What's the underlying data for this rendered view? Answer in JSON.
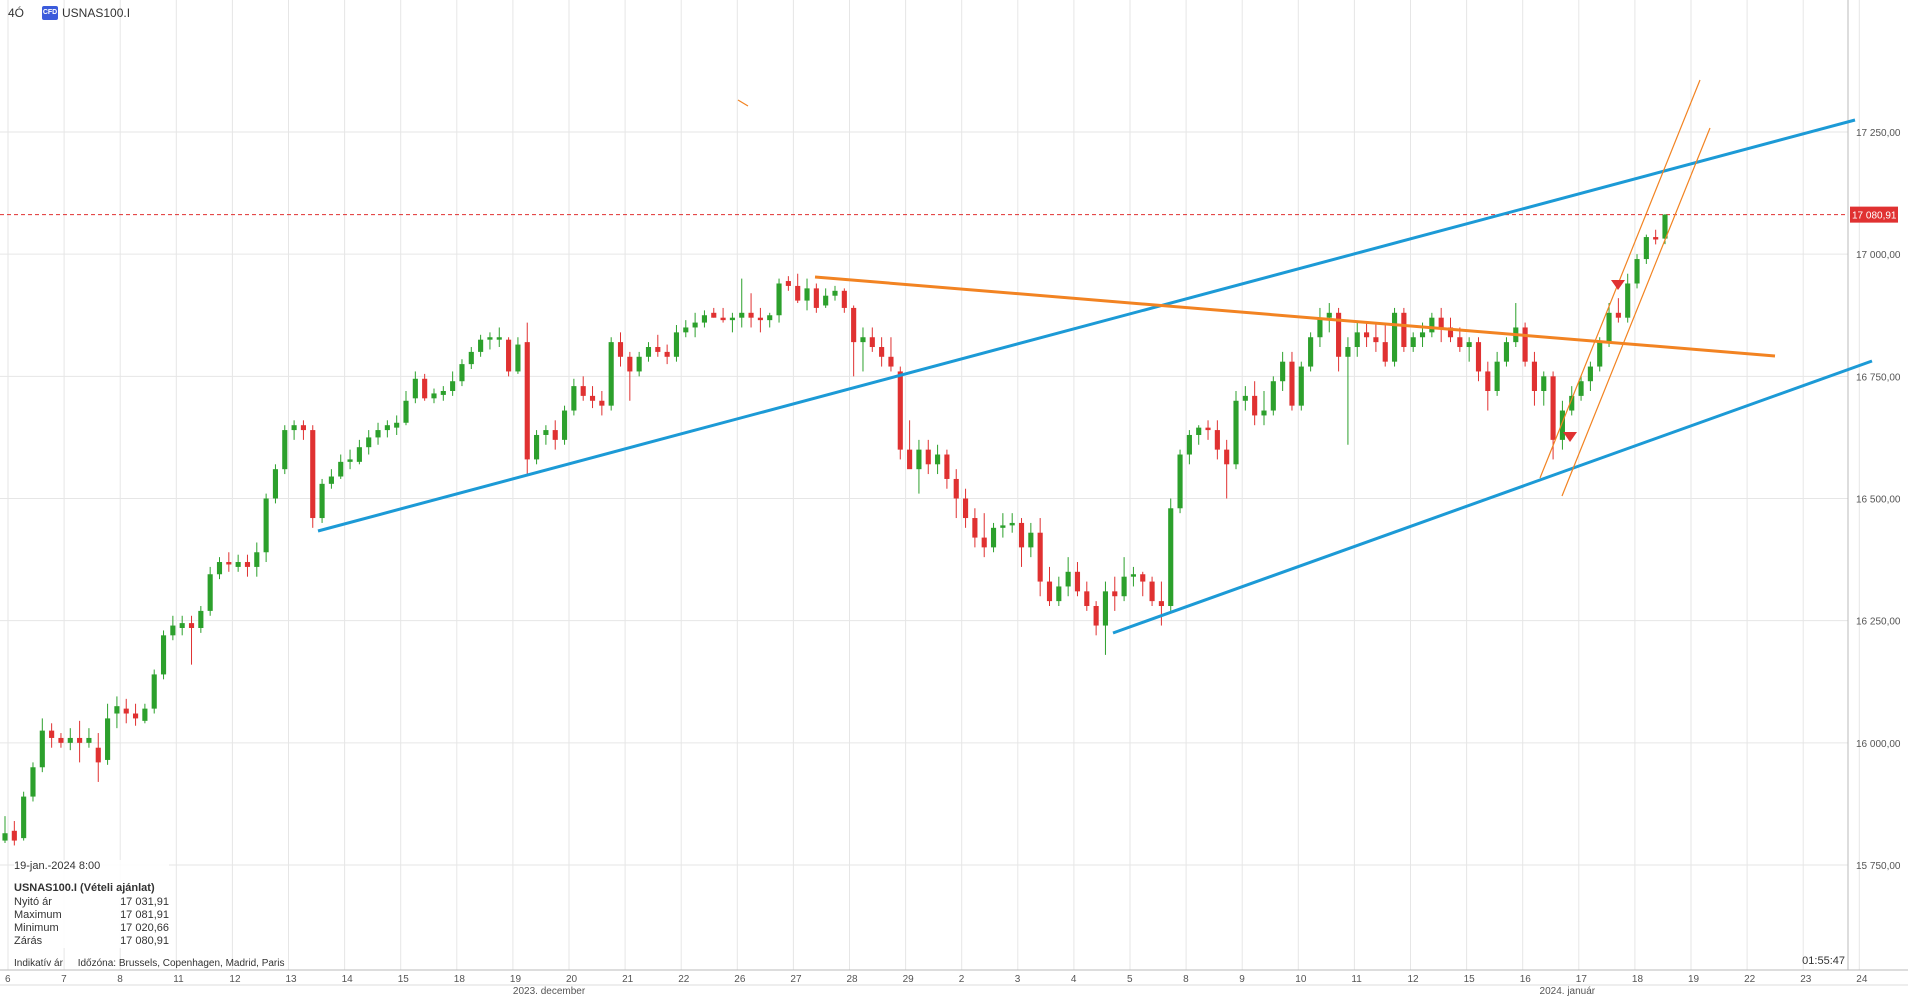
{
  "header": {
    "timeframe": "4Ó",
    "symbol": "USNAS100.I",
    "icon": "cfd-icon"
  },
  "colors": {
    "up": "#2ca02c",
    "down": "#e03131",
    "channel": "#1c9ad6",
    "trend": "#f28322",
    "price_line": "#e03131",
    "grid": "#e6e6e6"
  },
  "info": {
    "datetime": "19-jan.-2024 8:00",
    "title": "USNAS100.I (Vételi ajánlat)",
    "rows": [
      {
        "label": "Nyitó ár",
        "value": "17 031,91"
      },
      {
        "label": "Maximum",
        "value": "17 081,91"
      },
      {
        "label": "Minimum",
        "value": "17 020,66"
      },
      {
        "label": "Zárás",
        "value": "17 080,91"
      }
    ]
  },
  "footer": {
    "indicative": "Indikatív ár",
    "timezone": "Időzóna: Brussels, Copenhagen, Madrid, Paris",
    "clock": "01:55:47"
  },
  "chart_data": {
    "type": "candlestick",
    "y_ticks": [
      "17 250,00",
      "17 000,00",
      "16 750,00",
      "16 500,00",
      "16 250,00",
      "16 000,00",
      "15 750,00"
    ],
    "y_tick_values": [
      17250,
      17000,
      16750,
      16500,
      16250,
      16000,
      15750
    ],
    "ylim": [
      15500,
      17500
    ],
    "current_price": "17 080,91",
    "current_price_value": 17080.91,
    "x_days": [
      "6",
      "7",
      "8",
      "11",
      "12",
      "13",
      "14",
      "15",
      "18",
      "19",
      "20",
      "21",
      "22",
      "26",
      "27",
      "28",
      "29",
      "2",
      "3",
      "4",
      "5",
      "8",
      "9",
      "10",
      "11",
      "12",
      "15",
      "16",
      "17",
      "18",
      "19",
      "22",
      "23",
      "24"
    ],
    "month_labels": [
      {
        "label": "2023. december",
        "day_index": 9
      },
      {
        "label": "2024. január",
        "day_index": 27.3
      }
    ],
    "candles": [
      [
        15800,
        15850,
        15795,
        15815
      ],
      [
        15820,
        15840,
        15790,
        15800
      ],
      [
        15805,
        15900,
        15800,
        15890
      ],
      [
        15890,
        15960,
        15880,
        15950
      ],
      [
        15950,
        16050,
        15940,
        16025
      ],
      [
        16025,
        16040,
        15990,
        16010
      ],
      [
        16010,
        16020,
        15990,
        16000
      ],
      [
        16000,
        16030,
        15985,
        16010
      ],
      [
        16010,
        16045,
        15960,
        16000
      ],
      [
        16000,
        16030,
        15990,
        16010
      ],
      [
        15990,
        16020,
        15920,
        15960
      ],
      [
        15965,
        16080,
        15955,
        16050
      ],
      [
        16060,
        16095,
        16030,
        16075
      ],
      [
        16070,
        16090,
        16040,
        16060
      ],
      [
        16060,
        16080,
        16035,
        16050
      ],
      [
        16045,
        16080,
        16040,
        16070
      ],
      [
        16070,
        16150,
        16060,
        16140
      ],
      [
        16140,
        16230,
        16130,
        16220
      ],
      [
        16220,
        16260,
        16210,
        16240
      ],
      [
        16235,
        16260,
        16220,
        16245
      ],
      [
        16245,
        16260,
        16160,
        16235
      ],
      [
        16235,
        16280,
        16225,
        16270
      ],
      [
        16270,
        16360,
        16260,
        16345
      ],
      [
        16345,
        16380,
        16335,
        16370
      ],
      [
        16370,
        16390,
        16350,
        16365
      ],
      [
        16360,
        16385,
        16350,
        16370
      ],
      [
        16370,
        16385,
        16340,
        16360
      ],
      [
        16360,
        16410,
        16340,
        16390
      ],
      [
        16390,
        16510,
        16370,
        16500
      ],
      [
        16500,
        16570,
        16490,
        16560
      ],
      [
        16560,
        16650,
        16550,
        16640
      ],
      [
        16640,
        16660,
        16620,
        16650
      ],
      [
        16650,
        16660,
        16620,
        16640
      ],
      [
        16640,
        16650,
        16440,
        16460
      ],
      [
        16460,
        16540,
        16450,
        16530
      ],
      [
        16530,
        16560,
        16520,
        16545
      ],
      [
        16545,
        16590,
        16540,
        16575
      ],
      [
        16575,
        16600,
        16560,
        16580
      ],
      [
        16575,
        16620,
        16570,
        16605
      ],
      [
        16605,
        16640,
        16590,
        16625
      ],
      [
        16625,
        16655,
        16610,
        16640
      ],
      [
        16640,
        16660,
        16625,
        16650
      ],
      [
        16645,
        16670,
        16630,
        16655
      ],
      [
        16655,
        16720,
        16650,
        16700
      ],
      [
        16705,
        16760,
        16695,
        16745
      ],
      [
        16745,
        16755,
        16700,
        16705
      ],
      [
        16705,
        16725,
        16695,
        16715
      ],
      [
        16712,
        16730,
        16700,
        16720
      ],
      [
        16720,
        16760,
        16710,
        16740
      ],
      [
        16740,
        16785,
        16730,
        16775
      ],
      [
        16775,
        16810,
        16765,
        16800
      ],
      [
        16800,
        16835,
        16790,
        16825
      ],
      [
        16825,
        16840,
        16805,
        16830
      ],
      [
        16825,
        16850,
        16810,
        16830
      ],
      [
        16825,
        16830,
        16750,
        16760
      ],
      [
        16760,
        16830,
        16755,
        16815
      ],
      [
        16820,
        16860,
        16550,
        16580
      ],
      [
        16580,
        16640,
        16570,
        16630
      ],
      [
        16630,
        16650,
        16610,
        16640
      ],
      [
        16640,
        16660,
        16600,
        16620
      ],
      [
        16620,
        16690,
        16610,
        16680
      ],
      [
        16680,
        16745,
        16670,
        16730
      ],
      [
        16730,
        16750,
        16700,
        16710
      ],
      [
        16710,
        16730,
        16685,
        16700
      ],
      [
        16700,
        16720,
        16670,
        16690
      ],
      [
        16690,
        16830,
        16680,
        16820
      ],
      [
        16820,
        16840,
        16770,
        16790
      ],
      [
        16790,
        16800,
        16700,
        16760
      ],
      [
        16760,
        16800,
        16750,
        16790
      ],
      [
        16790,
        16820,
        16780,
        16810
      ],
      [
        16810,
        16835,
        16790,
        16800
      ],
      [
        16800,
        16815,
        16775,
        16790
      ],
      [
        16790,
        16855,
        16780,
        16840
      ],
      [
        16840,
        16865,
        16830,
        16850
      ],
      [
        16850,
        16880,
        16830,
        16860
      ],
      [
        16860,
        16885,
        16850,
        16875
      ],
      [
        16880,
        16890,
        16870,
        16870
      ],
      [
        16870,
        16890,
        16860,
        16865
      ],
      [
        16865,
        16880,
        16840,
        16870
      ],
      [
        16870,
        16950,
        16850,
        16880
      ],
      [
        16880,
        16920,
        16850,
        16870
      ],
      [
        16870,
        16890,
        16840,
        16865
      ],
      [
        16865,
        16880,
        16850,
        16875
      ],
      [
        16875,
        16950,
        16860,
        16940
      ],
      [
        16945,
        16955,
        16925,
        16935
      ],
      [
        16935,
        16960,
        16900,
        16905
      ],
      [
        16905,
        16950,
        16885,
        16930
      ],
      [
        16930,
        16940,
        16880,
        16890
      ],
      [
        16895,
        16930,
        16890,
        16915
      ],
      [
        16915,
        16935,
        16905,
        16925
      ],
      [
        16925,
        16930,
        16880,
        16890
      ],
      [
        16890,
        16895,
        16750,
        16820
      ],
      [
        16820,
        16850,
        16760,
        16830
      ],
      [
        16830,
        16850,
        16800,
        16810
      ],
      [
        16810,
        16830,
        16770,
        16790
      ],
      [
        16790,
        16830,
        16760,
        16770
      ],
      [
        16760,
        16770,
        16580,
        16600
      ],
      [
        16600,
        16660,
        16570,
        16560
      ],
      [
        16560,
        16620,
        16510,
        16600
      ],
      [
        16600,
        16620,
        16550,
        16570
      ],
      [
        16570,
        16610,
        16550,
        16590
      ],
      [
        16590,
        16600,
        16520,
        16540
      ],
      [
        16540,
        16560,
        16460,
        16500
      ],
      [
        16500,
        16520,
        16440,
        16460
      ],
      [
        16460,
        16480,
        16400,
        16420
      ],
      [
        16420,
        16470,
        16380,
        16400
      ],
      [
        16400,
        16450,
        16390,
        16440
      ],
      [
        16440,
        16470,
        16420,
        16445
      ],
      [
        16445,
        16470,
        16430,
        16450
      ],
      [
        16450,
        16460,
        16360,
        16400
      ],
      [
        16400,
        16450,
        16380,
        16430
      ],
      [
        16430,
        16460,
        16300,
        16330
      ],
      [
        16330,
        16360,
        16280,
        16290
      ],
      [
        16290,
        16340,
        16280,
        16320
      ],
      [
        16320,
        16380,
        16300,
        16350
      ],
      [
        16350,
        16370,
        16300,
        16310
      ],
      [
        16310,
        16330,
        16270,
        16280
      ],
      [
        16280,
        16290,
        16220,
        16240
      ],
      [
        16240,
        16330,
        16180,
        16310
      ],
      [
        16310,
        16340,
        16270,
        16300
      ],
      [
        16300,
        16380,
        16290,
        16340
      ],
      [
        16340,
        16360,
        16320,
        16345
      ],
      [
        16345,
        16350,
        16300,
        16330
      ],
      [
        16330,
        16340,
        16280,
        16290
      ],
      [
        16290,
        16330,
        16240,
        16280
      ],
      [
        16280,
        16500,
        16270,
        16480
      ],
      [
        16480,
        16600,
        16470,
        16590
      ],
      [
        16590,
        16640,
        16570,
        16630
      ],
      [
        16630,
        16650,
        16610,
        16645
      ],
      [
        16645,
        16660,
        16620,
        16640
      ],
      [
        16640,
        16660,
        16580,
        16600
      ],
      [
        16600,
        16620,
        16500,
        16570
      ],
      [
        16570,
        16720,
        16560,
        16700
      ],
      [
        16700,
        16730,
        16680,
        16710
      ],
      [
        16710,
        16740,
        16650,
        16670
      ],
      [
        16670,
        16720,
        16650,
        16680
      ],
      [
        16680,
        16750,
        16670,
        16740
      ],
      [
        16740,
        16800,
        16720,
        16780
      ],
      [
        16780,
        16800,
        16680,
        16690
      ],
      [
        16690,
        16780,
        16680,
        16770
      ],
      [
        16770,
        16840,
        16760,
        16830
      ],
      [
        16830,
        16890,
        16810,
        16870
      ],
      [
        16870,
        16900,
        16840,
        16880
      ],
      [
        16880,
        16890,
        16760,
        16790
      ],
      [
        16790,
        16830,
        16610,
        16810
      ],
      [
        16810,
        16860,
        16790,
        16840
      ],
      [
        16840,
        16860,
        16810,
        16830
      ],
      [
        16830,
        16860,
        16800,
        16820
      ],
      [
        16820,
        16860,
        16770,
        16780
      ],
      [
        16780,
        16890,
        16770,
        16880
      ],
      [
        16880,
        16890,
        16800,
        16810
      ],
      [
        16810,
        16840,
        16800,
        16830
      ],
      [
        16830,
        16860,
        16810,
        16840
      ],
      [
        16840,
        16880,
        16830,
        16870
      ],
      [
        16870,
        16890,
        16820,
        16850
      ],
      [
        16850,
        16870,
        16820,
        16830
      ],
      [
        16830,
        16850,
        16800,
        16810
      ],
      [
        16810,
        16830,
        16780,
        16820
      ],
      [
        16820,
        16830,
        16740,
        16760
      ],
      [
        16760,
        16780,
        16680,
        16720
      ],
      [
        16720,
        16800,
        16710,
        16780
      ],
      [
        16780,
        16830,
        16770,
        16820
      ],
      [
        16820,
        16900,
        16810,
        16850
      ],
      [
        16850,
        16860,
        16770,
        16780
      ],
      [
        16780,
        16800,
        16690,
        16720
      ],
      [
        16720,
        16760,
        16690,
        16750
      ],
      [
        16750,
        16760,
        16580,
        16620
      ],
      [
        16620,
        16700,
        16600,
        16680
      ],
      [
        16680,
        16730,
        16670,
        16710
      ],
      [
        16710,
        16750,
        16700,
        16740
      ],
      [
        16740,
        16780,
        16720,
        16770
      ],
      [
        16770,
        16830,
        16760,
        16820
      ],
      [
        16820,
        16900,
        16810,
        16880
      ],
      [
        16880,
        16910,
        16860,
        16870
      ],
      [
        16870,
        16960,
        16860,
        16940
      ],
      [
        16940,
        17000,
        16930,
        16990
      ],
      [
        16990,
        17040,
        16980,
        17035
      ],
      [
        17035,
        17050,
        17020,
        17030
      ],
      [
        17031.91,
        17081.91,
        17020.66,
        17080.91
      ]
    ]
  }
}
